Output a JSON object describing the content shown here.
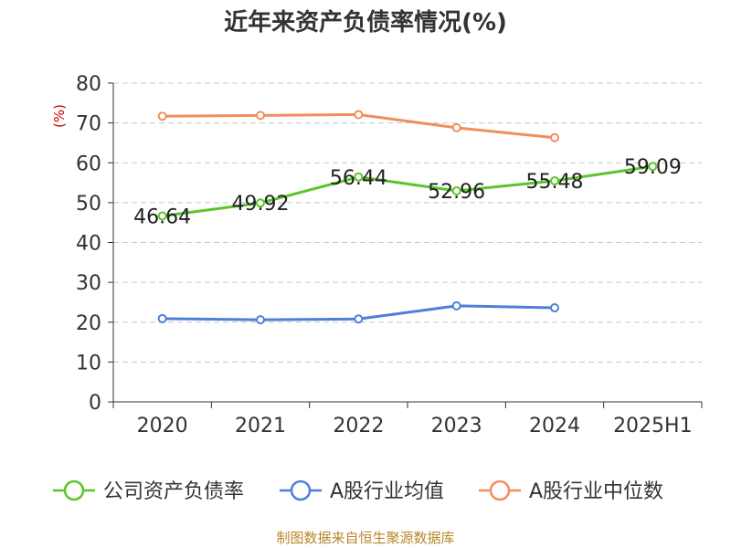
{
  "chart_data": {
    "type": "line",
    "title": "近年来资产负债率情况(%)",
    "ylabel": "(%)",
    "xlabel": "",
    "categories": [
      "2020",
      "2021",
      "2022",
      "2023",
      "2024",
      "2025H1"
    ],
    "ylim": [
      0,
      80
    ],
    "yticks": [
      0,
      10,
      20,
      30,
      40,
      50,
      60,
      70,
      80
    ],
    "grid": true,
    "legend_position": "bottom",
    "series": [
      {
        "name": "公司资产负债率",
        "color": "#5cc42b",
        "values": [
          46.64,
          49.92,
          56.44,
          52.96,
          55.48,
          59.09
        ],
        "labels": [
          "46.64",
          "49.92",
          "56.44",
          "52.96",
          "55.48",
          "59.09"
        ]
      },
      {
        "name": "A股行业均值",
        "color": "#4f7fd9",
        "values": [
          20.9,
          20.6,
          20.8,
          24.1,
          23.6,
          null
        ]
      },
      {
        "name": "A股行业中位数",
        "color": "#f28e5b",
        "values": [
          71.7,
          71.9,
          72.1,
          68.8,
          66.3,
          null
        ]
      }
    ]
  },
  "source": "制图数据来自恒生聚源数据库"
}
